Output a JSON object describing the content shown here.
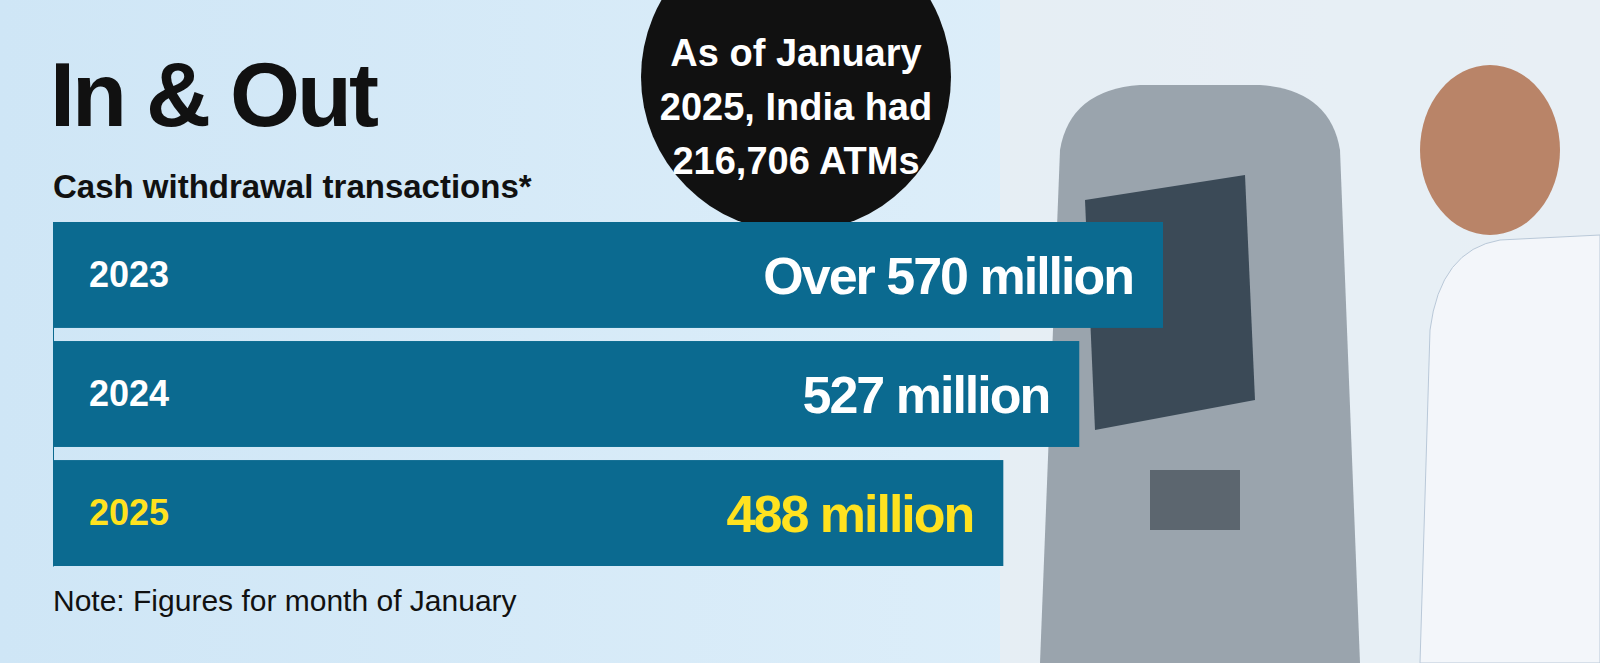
{
  "chart_data": {
    "type": "bar",
    "orientation": "horizontal",
    "title": "In & Out",
    "subtitle": "Cash withdrawal transactions*",
    "annotation": "As of January 2025, India had 216,706 ATMs",
    "note": "Note: Figures for month of January",
    "categories": [
      "2023",
      "2024",
      "2025"
    ],
    "values": [
      570,
      527,
      488
    ],
    "value_labels": [
      "Over 570 million",
      "527 million",
      "488 million"
    ],
    "color": "#0b6a90",
    "xlim": [
      0,
      570
    ],
    "data_labels": true,
    "tick_labels": "y",
    "grid": false
  }
}
